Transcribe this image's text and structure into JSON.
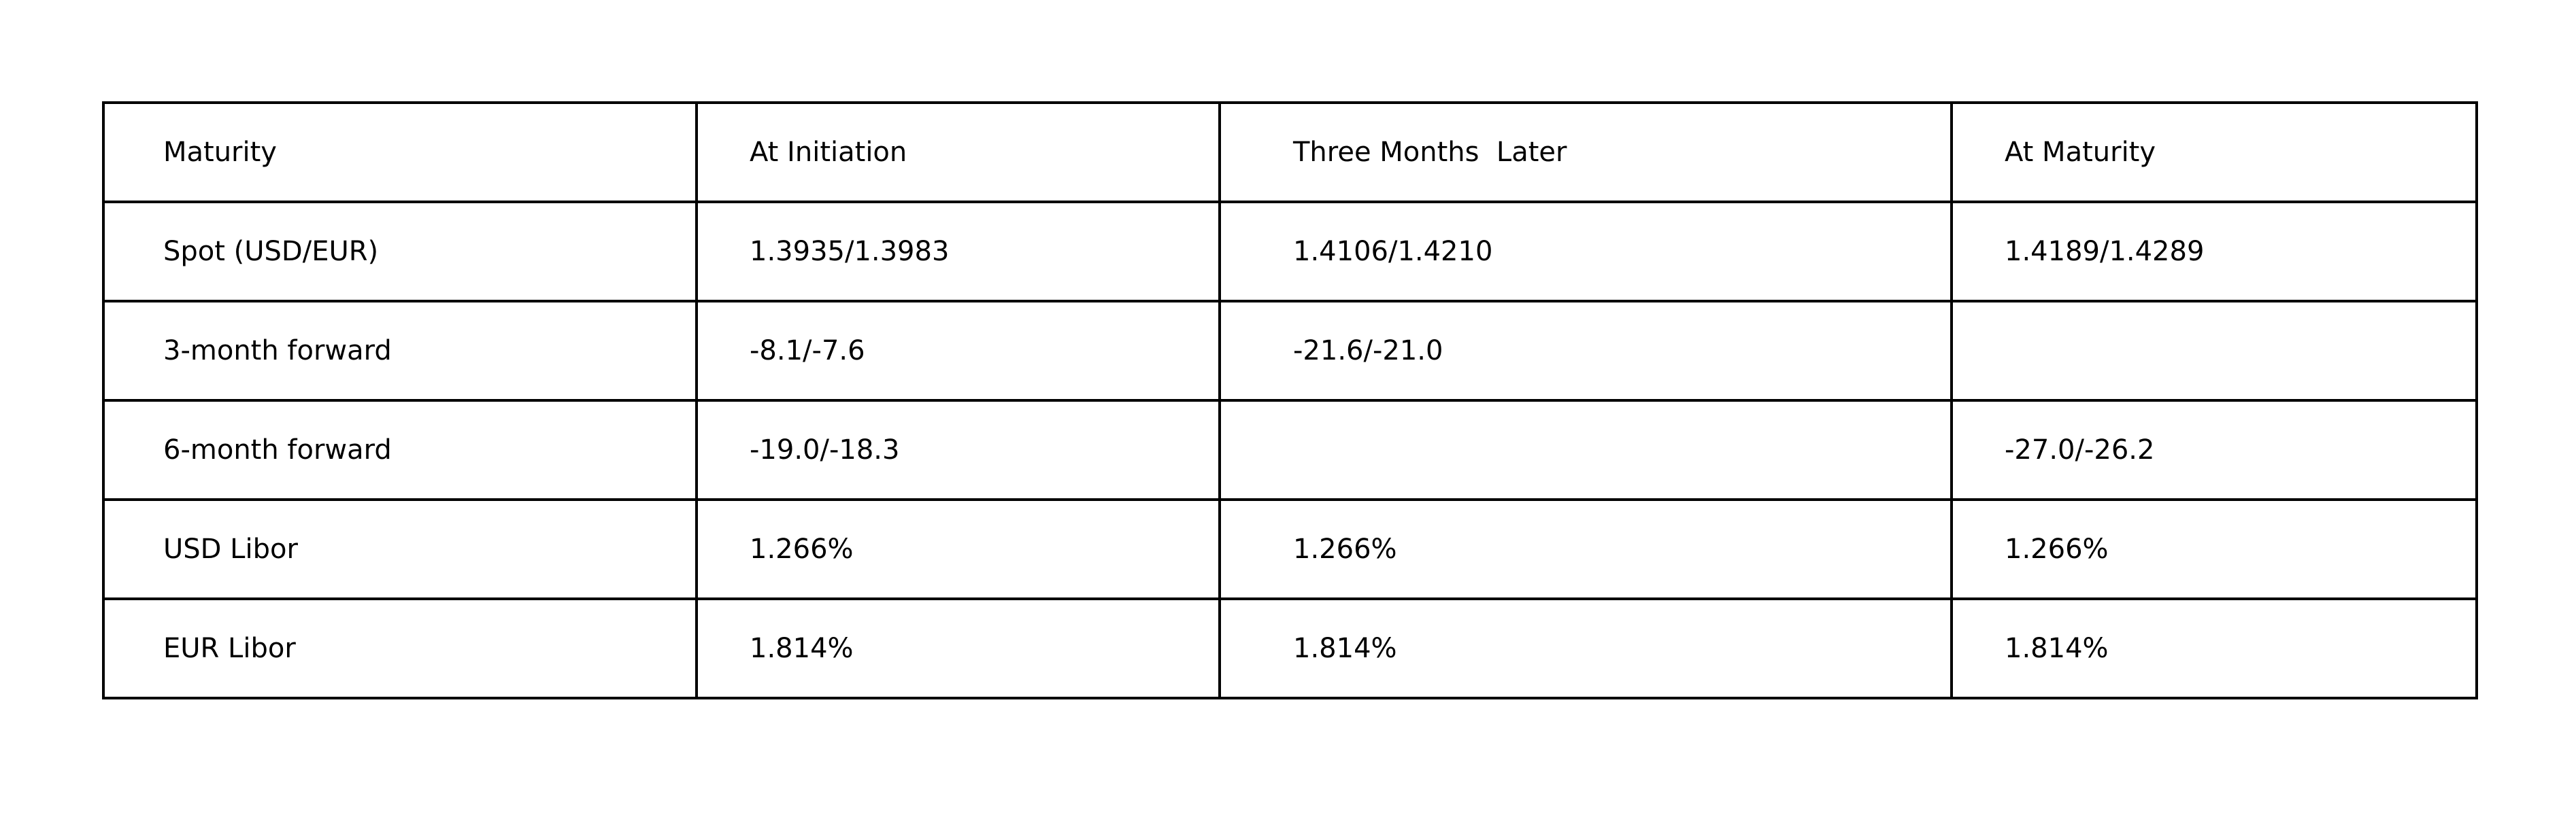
{
  "table": {
    "header": [
      "Maturity",
      "At Initiation",
      "Three Months  Later",
      "At Maturity"
    ],
    "rows": [
      [
        "Spot (USD/EUR)",
        "1.3935/1.3983",
        "1.4106/1.4210",
        "1.4189/1.4289"
      ],
      [
        "3-month forward",
        "-8.1/-7.6",
        "-21.6/-21.0",
        ""
      ],
      [
        "6-month forward",
        "-19.0/-18.3",
        "",
        "-27.0/-26.2"
      ],
      [
        "USD Libor",
        "1.266%",
        "1.266%",
        "1.266%"
      ],
      [
        "EUR Libor",
        "1.814%",
        "1.814%",
        "1.814%"
      ]
    ]
  }
}
